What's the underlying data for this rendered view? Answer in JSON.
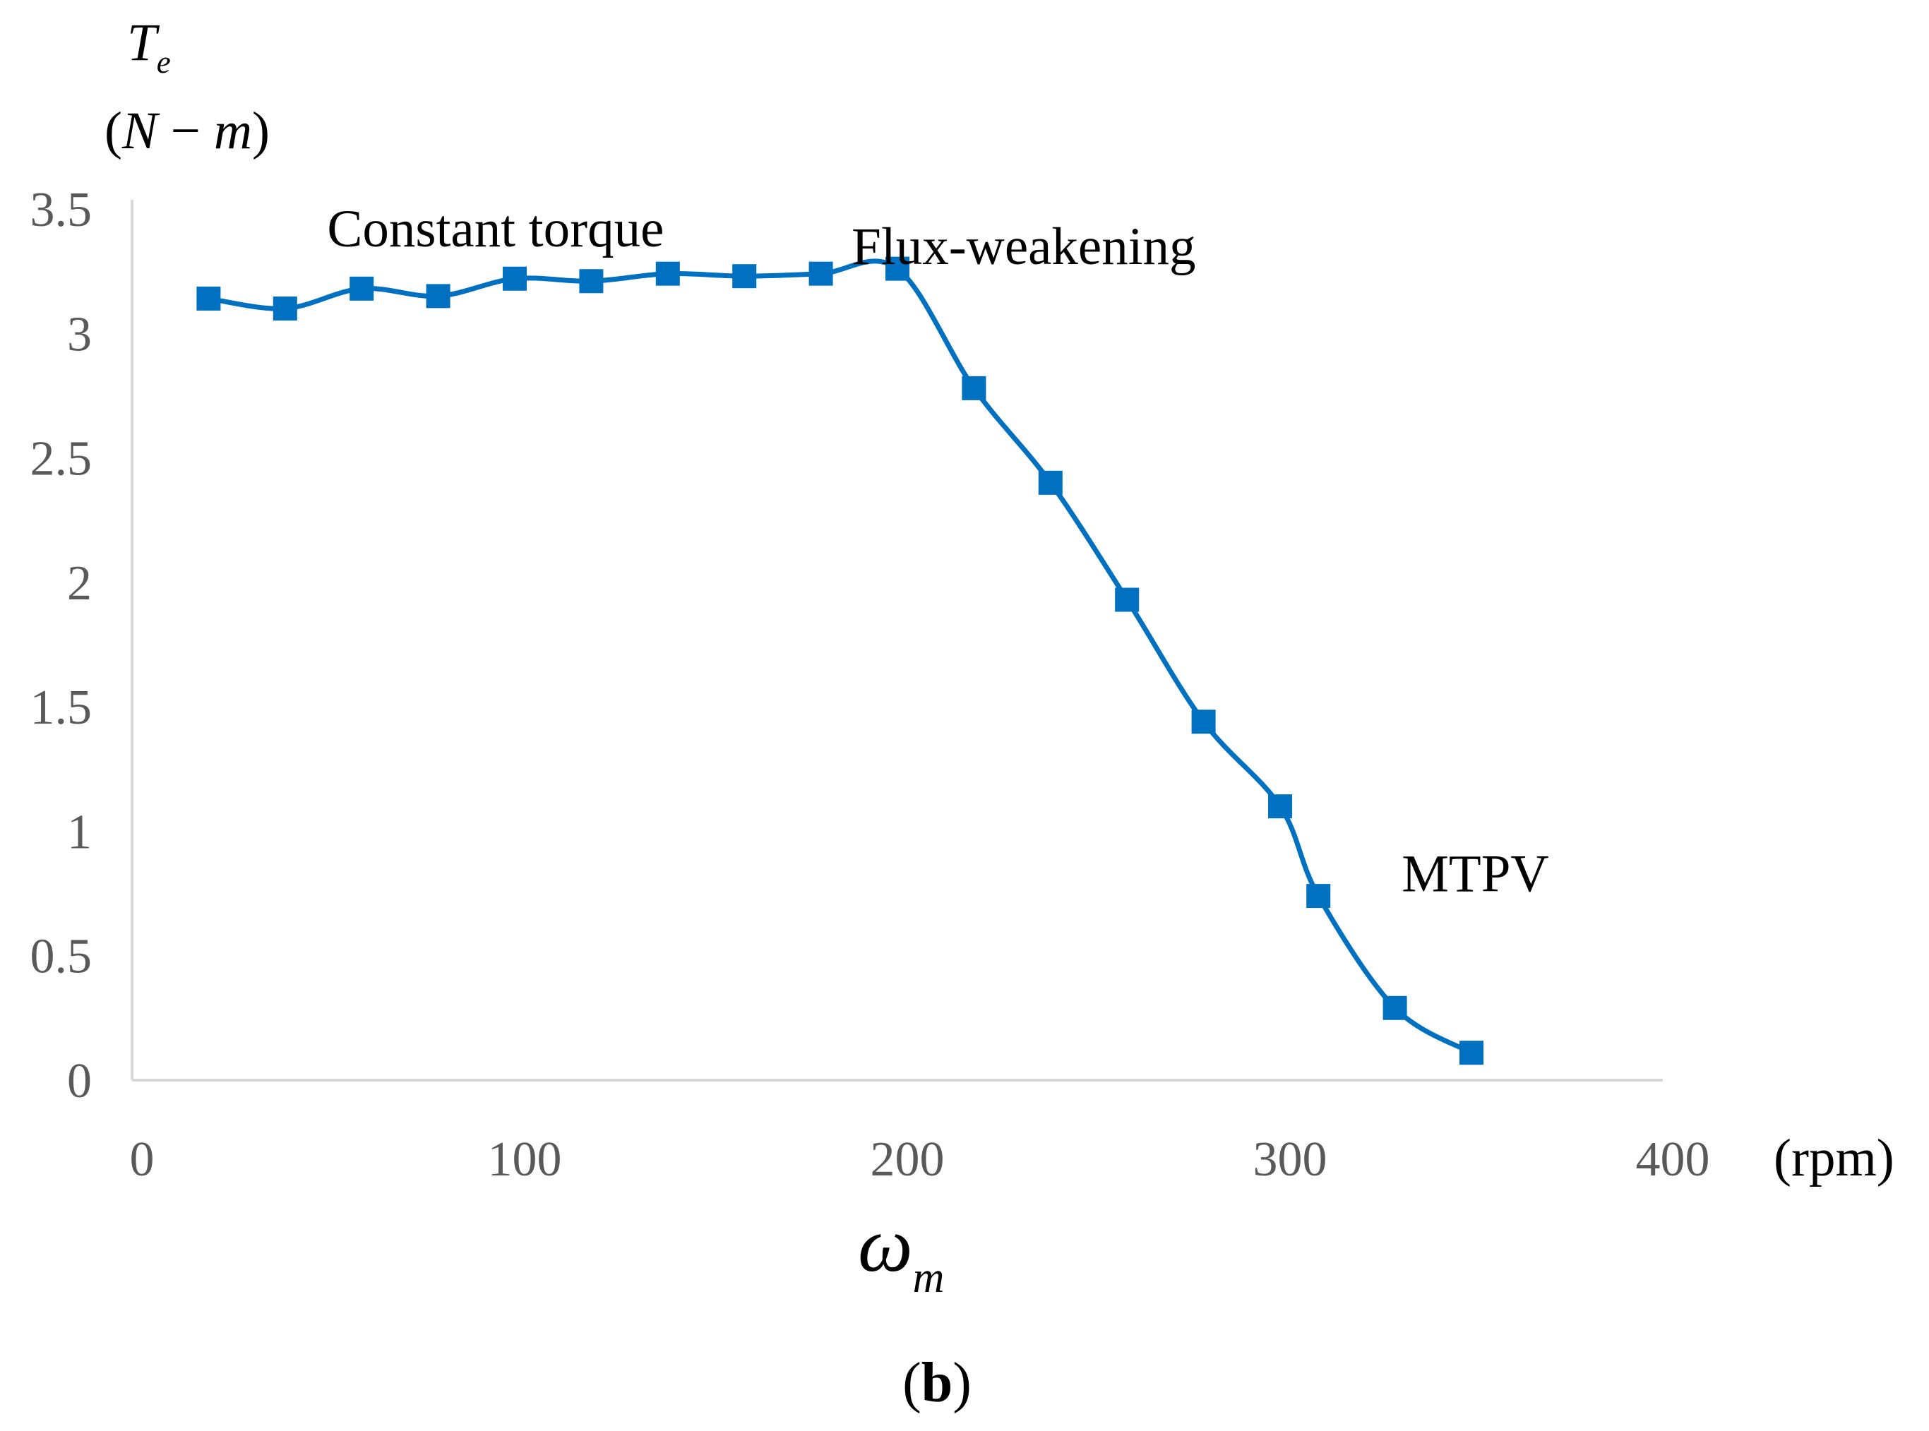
{
  "chart_data": {
    "type": "line",
    "title": "",
    "ylabel_symbol": "T",
    "ylabel_subscript": "e",
    "ylabel_unit_prefix": "(",
    "ylabel_unit_N": "N",
    "ylabel_unit_dash": " − ",
    "ylabel_unit_m": "m",
    "ylabel_unit_suffix": ")",
    "xlabel_symbol": "ω",
    "xlabel_subscript": "m",
    "xunit": "(rpm)",
    "xlim": [
      0,
      400
    ],
    "ylim": [
      0,
      3.5
    ],
    "x_ticks": [
      0,
      100,
      200,
      300,
      400
    ],
    "x_tick_labels": [
      "0",
      "100",
      "200",
      "300",
      "400"
    ],
    "y_ticks": [
      0,
      0.5,
      1,
      1.5,
      2,
      2.5,
      3,
      3.5
    ],
    "y_tick_labels": [
      "0",
      "0.5",
      "1",
      "1.5",
      "2",
      "2.5",
      "3",
      "3.5"
    ],
    "grid": false,
    "series": [
      {
        "name": "Te",
        "color": "#0070C0",
        "marker": "square",
        "x": [
          20,
          40,
          60,
          80,
          100,
          120,
          140,
          160,
          180,
          200,
          220,
          240,
          260,
          280,
          300,
          310,
          330,
          350
        ],
        "y": [
          3.14,
          3.1,
          3.18,
          3.15,
          3.22,
          3.21,
          3.24,
          3.23,
          3.24,
          3.26,
          2.78,
          2.4,
          1.93,
          1.44,
          1.1,
          0.74,
          0.29,
          0.11
        ]
      }
    ],
    "annotations": [
      {
        "text": "Constant torque",
        "x": 95,
        "y": 3.42
      },
      {
        "text": "Flux-weakening",
        "x": 233,
        "y": 3.35
      },
      {
        "text": "MTPV",
        "x": 351,
        "y": 0.83
      }
    ]
  },
  "panel_label_prefix": "(",
  "panel_label_letter": "b",
  "panel_label_suffix": ")"
}
